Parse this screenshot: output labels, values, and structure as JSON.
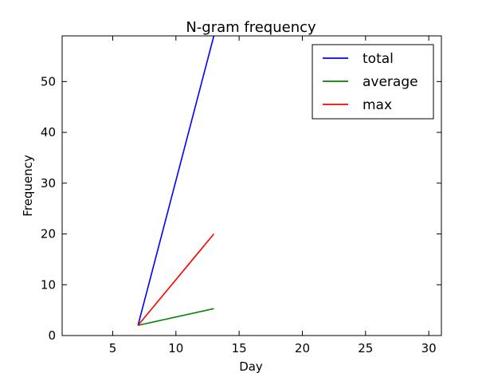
{
  "chart_data": {
    "type": "line",
    "title": "N-gram frequency",
    "xlabel": "Day",
    "ylabel": "Frequency",
    "xlim": [
      1,
      31
    ],
    "ylim": [
      0,
      59
    ],
    "xticks": [
      5,
      10,
      15,
      20,
      25,
      30
    ],
    "yticks": [
      0,
      10,
      20,
      30,
      40,
      50
    ],
    "grid": false,
    "legend_position": "top-right",
    "series": [
      {
        "name": "total",
        "color": "#0000ff",
        "x": [
          7,
          13
        ],
        "y": [
          2,
          59
        ]
      },
      {
        "name": "average",
        "color": "#008000",
        "x": [
          7,
          13
        ],
        "y": [
          2,
          5.3
        ]
      },
      {
        "name": "max",
        "color": "#ff0000",
        "x": [
          7,
          13
        ],
        "y": [
          2,
          20
        ]
      }
    ]
  }
}
